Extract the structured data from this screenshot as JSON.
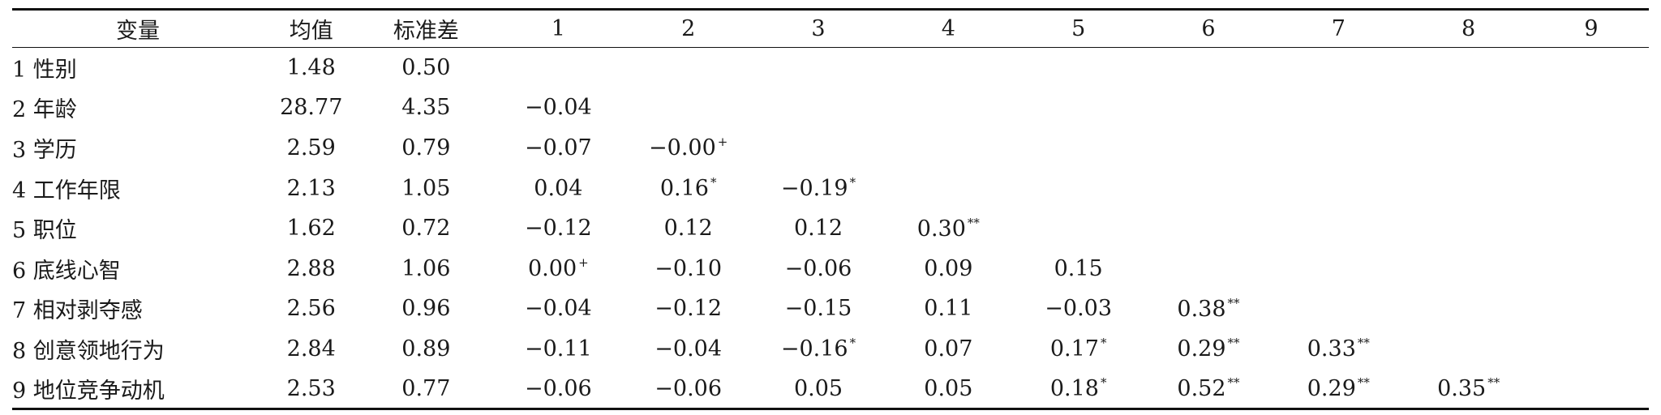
{
  "headers": [
    "变量",
    "均值",
    "标准差",
    "1",
    "2",
    "3",
    "4",
    "5",
    "6",
    "7",
    "8",
    "9"
  ],
  "rows": [
    {
      "label": "1 性别",
      "mean": "1.48",
      "sd": "0.50",
      "c": []
    },
    {
      "label": "2 年龄",
      "mean": "28.77",
      "sd": "4.35",
      "c": [
        [
          "−0.04",
          ""
        ]
      ]
    },
    {
      "label": "3 学历",
      "mean": "2.59",
      "sd": "0.79",
      "c": [
        [
          "−0.07",
          ""
        ],
        [
          "−0.00",
          "+"
        ]
      ]
    },
    {
      "label": "4 工作年限",
      "mean": "2.13",
      "sd": "1.05",
      "c": [
        [
          "0.04",
          ""
        ],
        [
          "0.16",
          "*"
        ],
        [
          "−0.19",
          "*"
        ]
      ]
    },
    {
      "label": "5 职位",
      "mean": "1.62",
      "sd": "0.72",
      "c": [
        [
          "−0.12",
          ""
        ],
        [
          "0.12",
          ""
        ],
        [
          "0.12",
          ""
        ],
        [
          "0.30",
          "**"
        ]
      ]
    },
    {
      "label": "6 底线心智",
      "mean": "2.88",
      "sd": "1.06",
      "c": [
        [
          "0.00",
          "+"
        ],
        [
          "−0.10",
          ""
        ],
        [
          "−0.06",
          ""
        ],
        [
          "0.09",
          ""
        ],
        [
          "0.15",
          ""
        ]
      ]
    },
    {
      "label": "7 相对剥夺感",
      "mean": "2.56",
      "sd": "0.96",
      "c": [
        [
          "−0.04",
          ""
        ],
        [
          "−0.12",
          ""
        ],
        [
          "−0.15",
          ""
        ],
        [
          "0.11",
          ""
        ],
        [
          "−0.03",
          ""
        ],
        [
          "0.38",
          "**"
        ]
      ]
    },
    {
      "label": "8 创意领地行为",
      "mean": "2.84",
      "sd": "0.89",
      "c": [
        [
          "−0.11",
          ""
        ],
        [
          "−0.04",
          ""
        ],
        [
          "−0.16",
          "*"
        ],
        [
          "0.07",
          ""
        ],
        [
          "0.17",
          "*"
        ],
        [
          "0.29",
          "**"
        ],
        [
          "0.33",
          "**"
        ]
      ]
    },
    {
      "label": "9 地位竞争动机",
      "mean": "2.53",
      "sd": "0.77",
      "c": [
        [
          "−0.06",
          ""
        ],
        [
          "−0.06",
          ""
        ],
        [
          "0.05",
          ""
        ],
        [
          "0.05",
          ""
        ],
        [
          "0.18",
          "*"
        ],
        [
          "0.52",
          "**"
        ],
        [
          "0.29",
          "**"
        ],
        [
          "0.35",
          "**"
        ]
      ]
    }
  ]
}
